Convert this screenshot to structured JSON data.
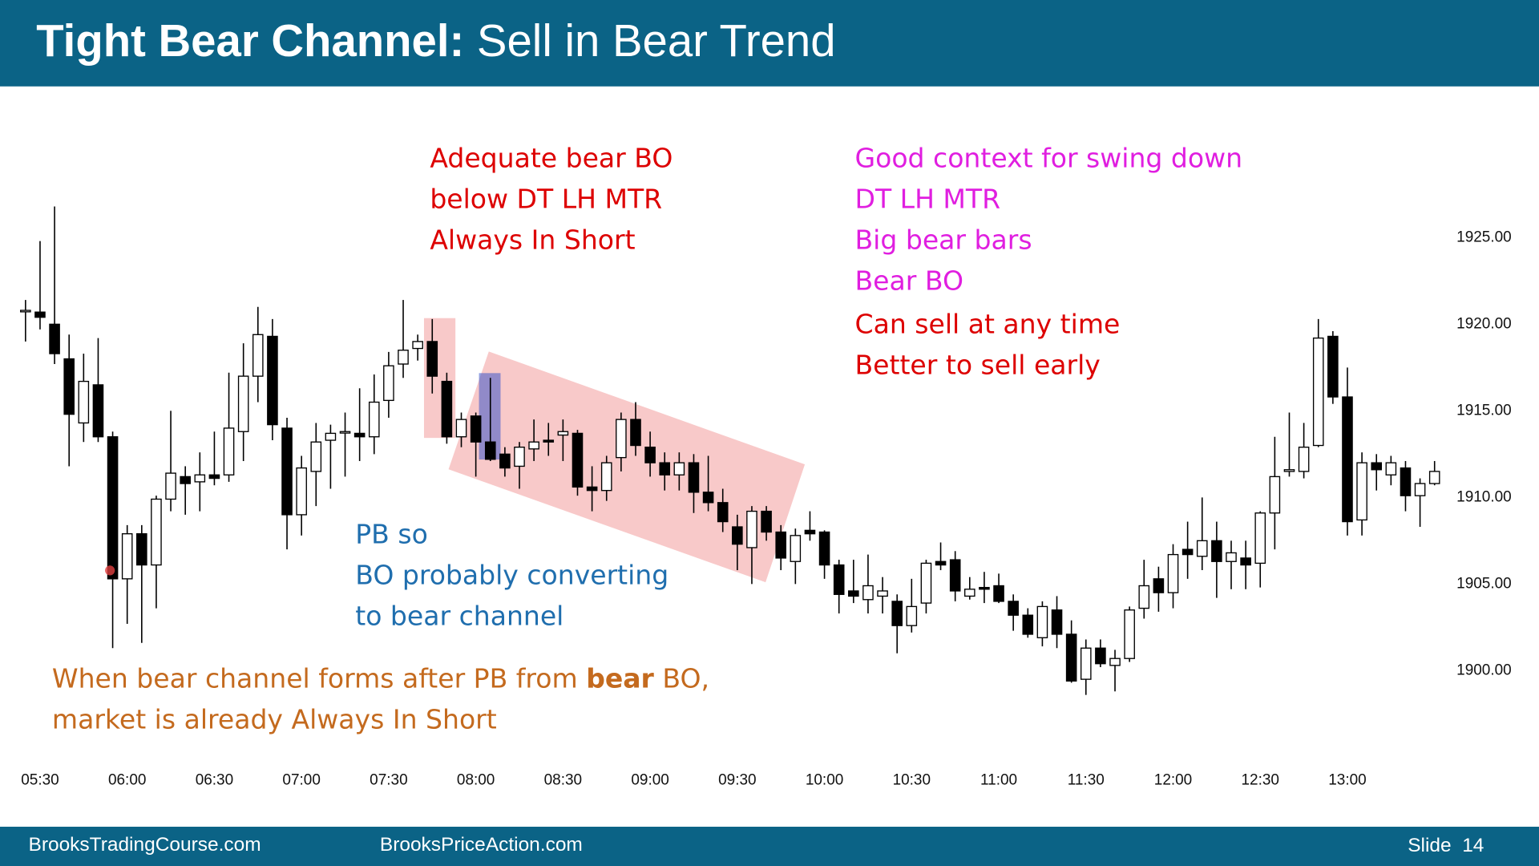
{
  "header": {
    "title_bold": "Tight Bear Channel:",
    "title_rest": " Sell in Bear Trend"
  },
  "chart_data": {
    "type": "candlestick",
    "up_color": "#ffffff",
    "down_color": "#000000",
    "edge_color": "#000000",
    "categories": [
      null,
      "05:30",
      null,
      null,
      null,
      null,
      null,
      "06:00",
      null,
      null,
      null,
      null,
      null,
      "06:30",
      null,
      null,
      null,
      null,
      null,
      "07:00",
      null,
      null,
      null,
      null,
      null,
      "07:30",
      null,
      null,
      null,
      null,
      null,
      "08:00",
      null,
      null,
      null,
      null,
      null,
      "08:30",
      null,
      null,
      null,
      null,
      null,
      "09:00",
      null,
      null,
      null,
      null,
      null,
      "09:30",
      null,
      null,
      null,
      null,
      null,
      "10:00",
      null,
      null,
      null,
      null,
      null,
      "10:30",
      null,
      null,
      null,
      null,
      null,
      "11:00",
      null,
      null,
      null,
      null,
      null,
      "11:30",
      null,
      null,
      null,
      null,
      null,
      "12:00",
      null,
      null,
      null,
      null,
      null,
      "12:30",
      null,
      null,
      null,
      null,
      null,
      "13:00",
      null,
      null,
      null,
      null,
      null,
      null
    ],
    "open": [
      1920.8,
      1920.7,
      1920.0,
      1918.0,
      1914.3,
      1916.5,
      1913.5,
      1905.3,
      1907.9,
      1906.1,
      1909.9,
      1911.2,
      1910.9,
      1911.3,
      1911.3,
      1913.8,
      1917.0,
      1919.3,
      1914.0,
      1909.0,
      1911.5,
      1913.3,
      1913.8,
      1913.7,
      1913.5,
      1915.6,
      1917.7,
      1918.6,
      1919.0,
      1916.7,
      1913.5,
      1914.7,
      1913.2,
      1912.5,
      1911.8,
      1912.8,
      1913.3,
      1913.6,
      1913.7,
      1910.6,
      1910.4,
      1912.3,
      1914.5,
      1912.9,
      1912.0,
      1911.3,
      1912.0,
      1910.3,
      1909.7,
      1908.3,
      1907.1,
      1909.2,
      1908.0,
      1906.3,
      1908.1,
      1908.0,
      1906.1,
      1904.6,
      1904.1,
      1904.3,
      1904.0,
      1902.6,
      1903.9,
      1906.3,
      1906.4,
      1904.3,
      1904.8,
      1904.9,
      1904.0,
      1903.2,
      1901.9,
      1903.5,
      1902.1,
      1899.5,
      1901.3,
      1900.3,
      1900.7,
      1903.6,
      1905.3,
      1904.5,
      1907.0,
      1906.6,
      1907.5,
      1906.3,
      1906.5,
      1906.2,
      1909.1,
      1911.5,
      1911.5,
      1913.0,
      1919.3,
      1915.8,
      1908.7,
      1912.0,
      1911.3,
      1911.7,
      1910.1,
      1910.8
    ],
    "high": [
      1921.4,
      1924.8,
      1926.8,
      1919.4,
      1918.3,
      1919.2,
      1913.8,
      1908.4,
      1908.4,
      1910.1,
      1915.0,
      1911.8,
      1912.6,
      1913.8,
      1917.2,
      1918.9,
      1921.0,
      1920.3,
      1914.6,
      1912.4,
      1914.3,
      1914.2,
      1914.9,
      1916.3,
      1917.1,
      1918.4,
      1921.4,
      1919.4,
      1920.3,
      1917.2,
      1914.9,
      1914.9,
      1916.9,
      1912.9,
      1913.2,
      1914.5,
      1914.3,
      1914.5,
      1913.9,
      1911.8,
      1912.4,
      1914.9,
      1915.5,
      1913.8,
      1912.6,
      1912.6,
      1912.5,
      1912.4,
      1910.5,
      1909.0,
      1909.5,
      1909.5,
      1908.4,
      1908.2,
      1909.2,
      1908.1,
      1906.4,
      1906.4,
      1906.7,
      1905.4,
      1904.4,
      1905.3,
      1906.4,
      1907.4,
      1906.9,
      1905.4,
      1905.7,
      1905.6,
      1904.4,
      1903.6,
      1904.0,
      1904.3,
      1902.9,
      1901.8,
      1901.8,
      1901.2,
      1903.7,
      1906.4,
      1906.0,
      1907.3,
      1908.6,
      1910.0,
      1908.6,
      1907.5,
      1907.5,
      1909.2,
      1913.5,
      1914.9,
      1914.3,
      1920.3,
      1919.6,
      1917.5,
      1912.6,
      1912.5,
      1912.4,
      1912.1,
      1911.1,
      1912.1
    ],
    "low": [
      1919.0,
      1919.7,
      1917.7,
      1911.8,
      1913.2,
      1913.2,
      1901.3,
      1902.7,
      1901.6,
      1903.6,
      1909.2,
      1909.0,
      1909.2,
      1910.7,
      1910.9,
      1912.1,
      1915.5,
      1913.3,
      1907.0,
      1907.8,
      1909.5,
      1910.5,
      1911.2,
      1912.1,
      1912.5,
      1914.6,
      1916.9,
      1917.9,
      1916.0,
      1913.1,
      1912.9,
      1911.2,
      1912.1,
      1911.2,
      1910.5,
      1912.1,
      1912.4,
      1912.1,
      1910.1,
      1909.2,
      1909.8,
      1911.5,
      1912.4,
      1911.2,
      1910.4,
      1910.4,
      1909.1,
      1909.2,
      1908.0,
      1905.8,
      1905.0,
      1907.5,
      1905.8,
      1905.0,
      1907.5,
      1905.3,
      1903.3,
      1903.9,
      1903.3,
      1903.3,
      1901.0,
      1902.2,
      1903.3,
      1905.8,
      1904.0,
      1904.1,
      1903.9,
      1903.9,
      1902.3,
      1901.9,
      1901.4,
      1901.3,
      1899.3,
      1898.6,
      1900.2,
      1898.8,
      1900.5,
      1903.0,
      1903.4,
      1903.6,
      1905.3,
      1905.8,
      1904.2,
      1904.7,
      1904.7,
      1904.8,
      1907.0,
      1911.2,
      1911.1,
      1912.9,
      1915.4,
      1907.8,
      1907.8,
      1910.4,
      1910.7,
      1909.2,
      1908.3,
      1910.7
    ],
    "close": [
      1920.8,
      1920.4,
      1918.3,
      1914.8,
      1916.7,
      1913.5,
      1905.3,
      1907.9,
      1906.1,
      1909.9,
      1911.4,
      1910.8,
      1911.3,
      1911.1,
      1914.0,
      1917.0,
      1919.4,
      1914.2,
      1909.0,
      1911.7,
      1913.2,
      1913.7,
      1913.8,
      1913.5,
      1915.5,
      1917.6,
      1918.5,
      1919.0,
      1917.0,
      1913.5,
      1914.5,
      1913.2,
      1912.2,
      1911.7,
      1912.9,
      1913.2,
      1913.2,
      1913.8,
      1910.6,
      1910.4,
      1912.0,
      1914.5,
      1913.0,
      1912.0,
      1911.3,
      1912.0,
      1910.3,
      1909.7,
      1908.6,
      1907.3,
      1909.2,
      1908.0,
      1906.5,
      1907.8,
      1907.9,
      1906.1,
      1904.4,
      1904.3,
      1904.9,
      1904.6,
      1902.6,
      1903.7,
      1906.2,
      1906.1,
      1904.6,
      1904.7,
      1904.7,
      1904.0,
      1903.2,
      1902.1,
      1903.7,
      1902.1,
      1899.4,
      1901.3,
      1900.4,
      1900.7,
      1903.5,
      1904.9,
      1904.5,
      1906.7,
      1906.7,
      1907.5,
      1906.3,
      1906.8,
      1906.1,
      1909.1,
      1911.2,
      1911.6,
      1912.9,
      1919.2,
      1915.8,
      1908.6,
      1912.0,
      1911.6,
      1912.0,
      1910.1,
      1910.8,
      1911.5
    ],
    "ylim": [
      1895,
      1930
    ],
    "yticks": [
      {
        "value": 1900,
        "label": "1900.00"
      },
      {
        "value": 1905,
        "label": "1905.00"
      },
      {
        "value": 1910,
        "label": "1910.00"
      },
      {
        "value": 1915,
        "label": "1915.00"
      },
      {
        "value": 1920,
        "label": "1920.00"
      },
      {
        "value": 1925,
        "label": "1925.00"
      }
    ],
    "annotations": [
      {
        "color": "#dd0000",
        "lines": [
          [
            "Adequate bear BO"
          ],
          [
            "below DT LH MTR"
          ],
          [
            "Always In Short"
          ]
        ]
      },
      {
        "color": "#e01ee0",
        "lines": [
          [
            "Good context for swing down"
          ],
          [
            "DT LH MTR"
          ],
          [
            "Big bear bars"
          ],
          [
            "Bear BO"
          ]
        ]
      },
      {
        "color": "#dd0000",
        "lines": [
          [
            "Can sell at any time"
          ],
          [
            "Better to sell early"
          ]
        ]
      },
      {
        "color": "#1f6eae",
        "lines": [
          [
            "PB so"
          ],
          [
            "BO probably converting"
          ],
          [
            "to bear channel"
          ]
        ]
      },
      {
        "color": "#c46a1e",
        "lines": [
          [
            "When bear channel forms after PB from ",
            {
              "text": "bear",
              "bold": true
            },
            " BO,"
          ],
          [
            "market is already Always In Short"
          ]
        ]
      }
    ]
  },
  "footer": {
    "left": "BrooksTradingCourse.com",
    "middle": "BrooksPriceAction.com",
    "slide": "Slide  14"
  }
}
